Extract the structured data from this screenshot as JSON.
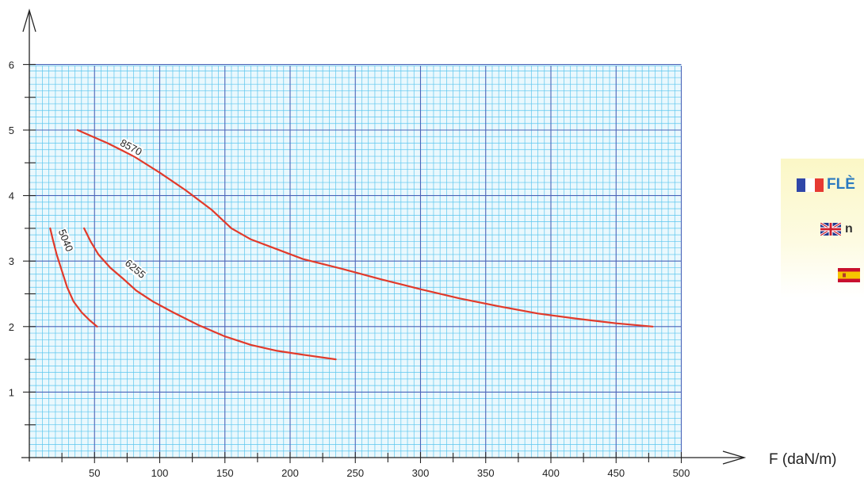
{
  "chart_data": {
    "type": "line",
    "xlabel": "F (daN/m)",
    "ylabel": "",
    "xlim": [
      0,
      500
    ],
    "ylim": [
      0,
      6
    ],
    "x_ticks": [
      50,
      100,
      150,
      200,
      250,
      300,
      350,
      400,
      450,
      500
    ],
    "y_ticks": [
      1,
      2,
      3,
      4,
      5,
      6
    ],
    "grid": true,
    "series": [
      {
        "name": "8570",
        "x": [
          37,
          60,
          80,
          100,
          120,
          140,
          155,
          170,
          190,
          210,
          240,
          270,
          300,
          330,
          360,
          390,
          420,
          450,
          478
        ],
        "y": [
          5.0,
          4.8,
          4.6,
          4.35,
          4.08,
          3.78,
          3.5,
          3.33,
          3.18,
          3.03,
          2.88,
          2.72,
          2.57,
          2.43,
          2.31,
          2.2,
          2.12,
          2.05,
          2.0
        ],
        "color": "#e23a2a"
      },
      {
        "name": "6255",
        "x": [
          42,
          47,
          53,
          62,
          72,
          82,
          95,
          110,
          130,
          150,
          170,
          190,
          210,
          235
        ],
        "y": [
          3.5,
          3.3,
          3.1,
          2.9,
          2.73,
          2.55,
          2.38,
          2.22,
          2.02,
          1.85,
          1.72,
          1.63,
          1.57,
          1.5
        ],
        "color": "#e23a2a"
      },
      {
        "name": "5040",
        "x": [
          16,
          18,
          21,
          25,
          29,
          34,
          40,
          46,
          52
        ],
        "y": [
          3.5,
          3.33,
          3.1,
          2.85,
          2.6,
          2.38,
          2.22,
          2.1,
          2.0
        ],
        "color": "#e23a2a"
      }
    ],
    "curve_label_positions": [
      {
        "name": "8570",
        "x": 77,
        "y": 4.7,
        "angle": 28
      },
      {
        "name": "6255",
        "x": 80,
        "y": 2.85,
        "angle": 40
      },
      {
        "name": "5040",
        "x": 26,
        "y": 3.3,
        "angle": 68
      }
    ]
  },
  "legend": {
    "fr_text": "FLÈ",
    "en_text": "n",
    "flag_fr_colors": [
      "#2f46a8",
      "#ffffff",
      "#e63a32"
    ]
  },
  "colors": {
    "grid_minor": "#5bc6ee",
    "grid_major": "#4a63b8",
    "plot_bg": "#eaf8fd",
    "curve": "#e23a2a",
    "axis": "#222222"
  }
}
